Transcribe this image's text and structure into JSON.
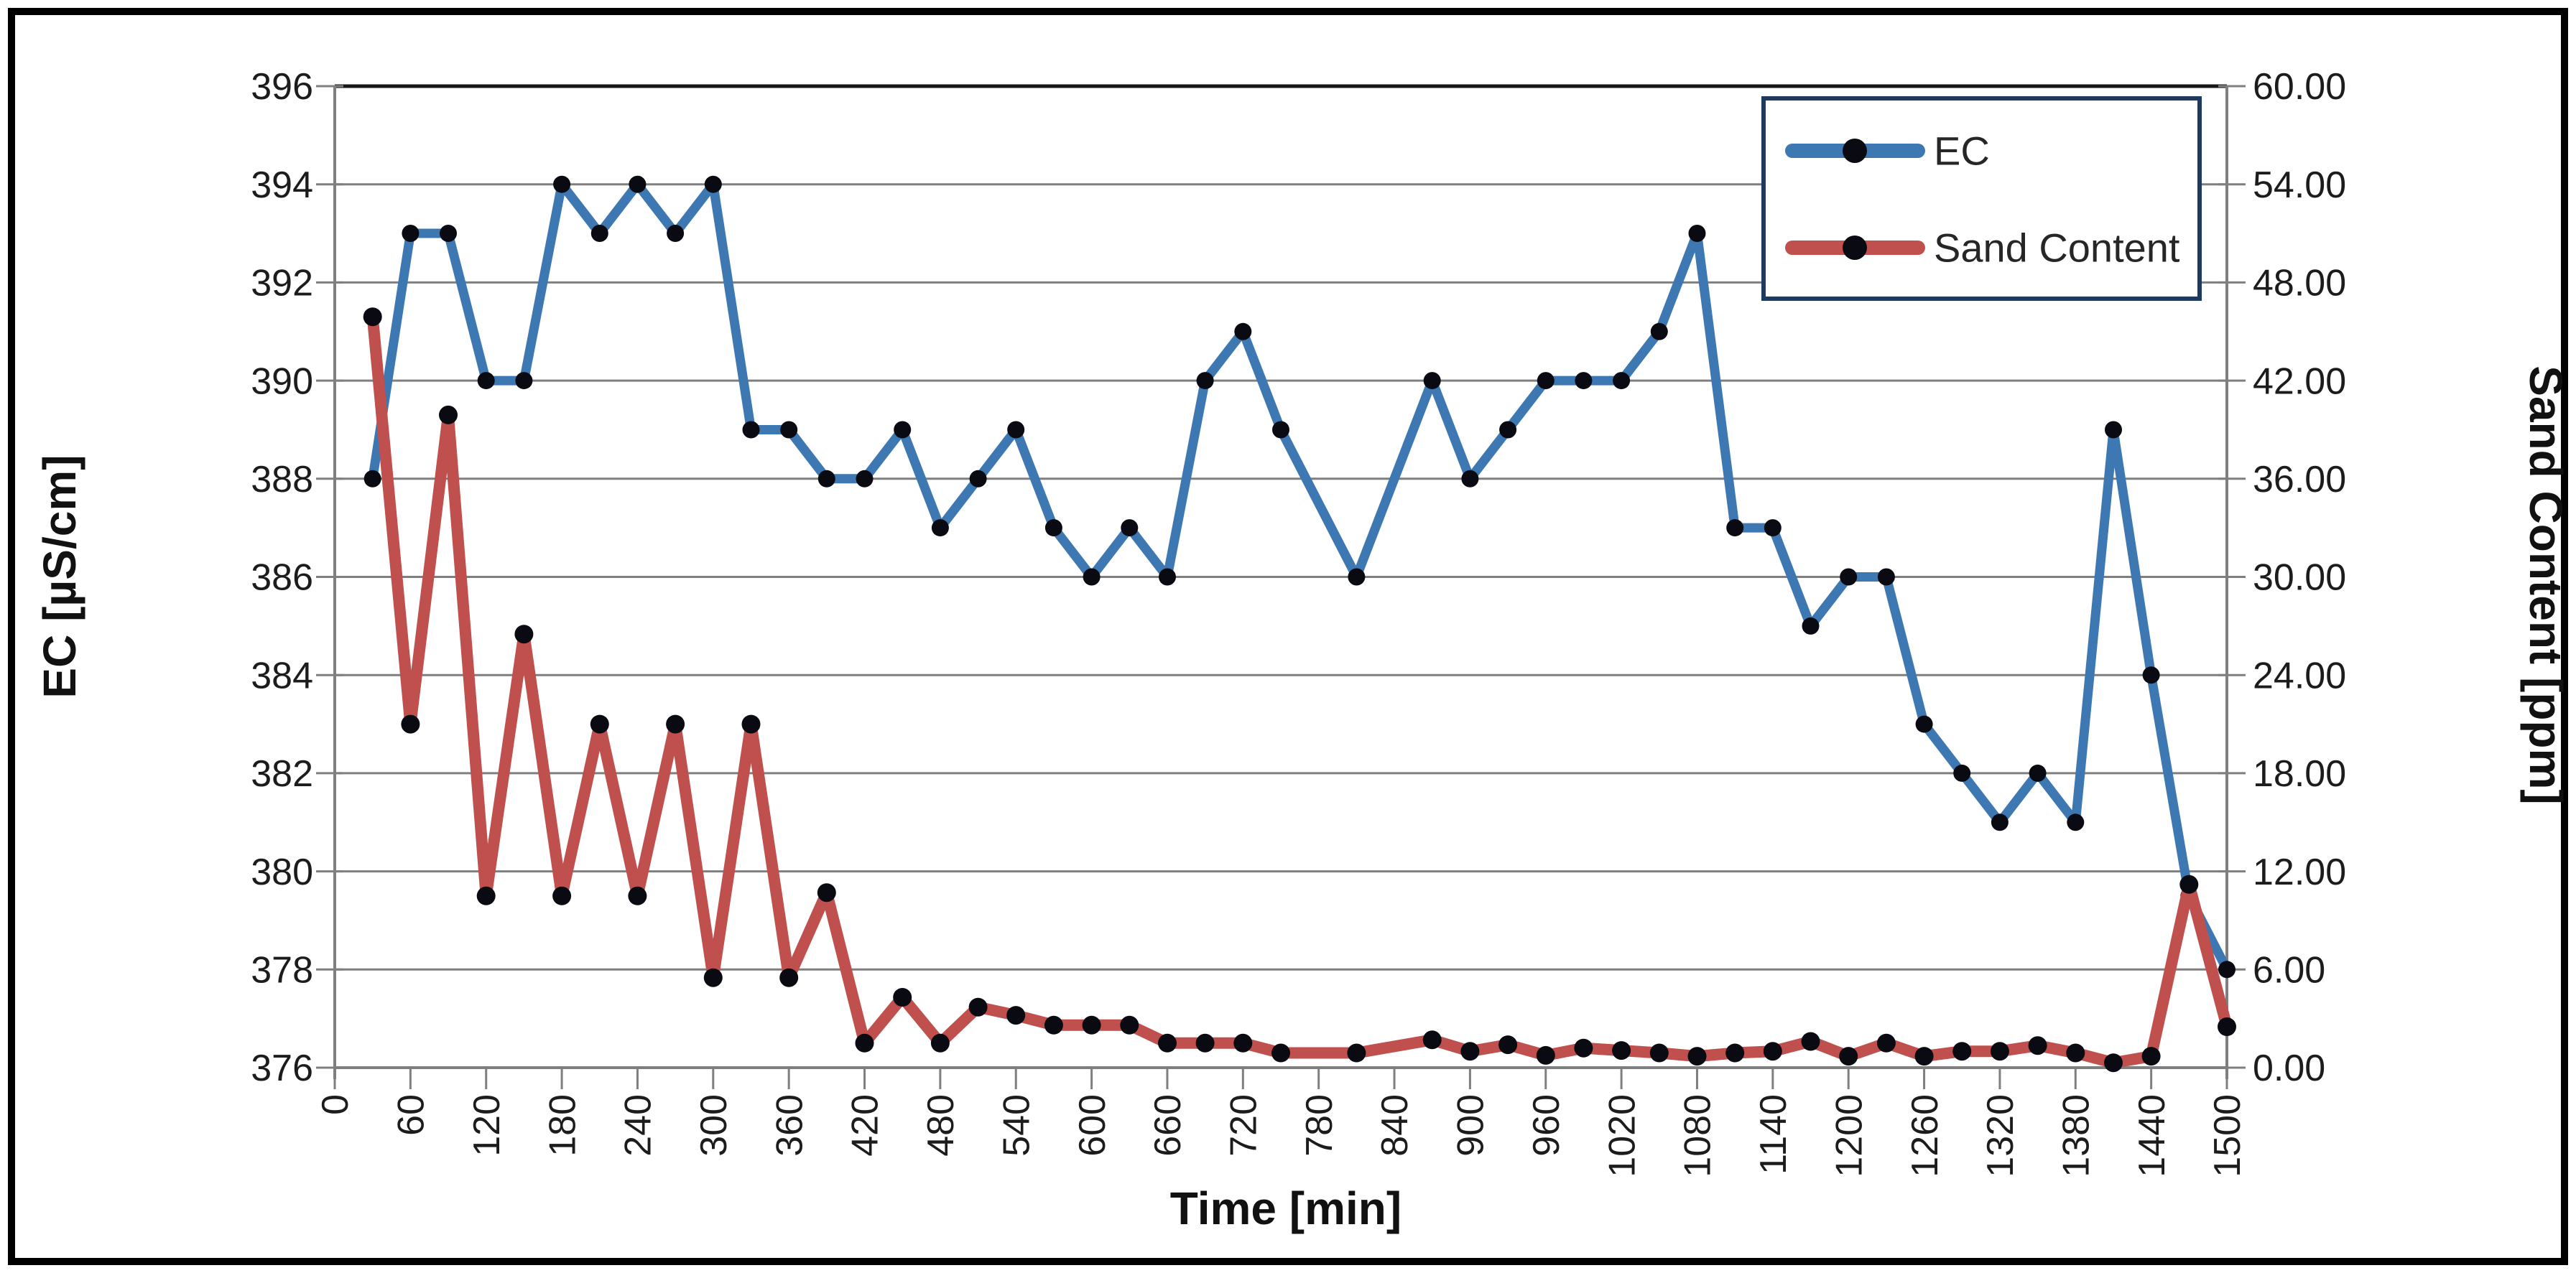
{
  "figure": {
    "background": "#ffffff",
    "border_color": "#000000"
  },
  "chart_data": {
    "type": "line",
    "xlabel": "Time [min]",
    "ylabel_left": "EC [µS/cm]",
    "ylabel_right": "Sand Content [ppm]",
    "x_min": 0,
    "x_max": 1500,
    "x_tick_step": 60,
    "x_tick_labels": [
      "0",
      "60",
      "120",
      "180",
      "240",
      "300",
      "360",
      "420",
      "480",
      "540",
      "600",
      "660",
      "720",
      "780",
      "840",
      "900",
      "960",
      "1020",
      "1080",
      "1140",
      "1200",
      "1260",
      "1320",
      "1380",
      "1440",
      "1500"
    ],
    "y_left": {
      "min": 376,
      "max": 396,
      "tick_step": 2,
      "tick_labels": [
        "376",
        "378",
        "380",
        "382",
        "384",
        "386",
        "388",
        "390",
        "392",
        "394",
        "396"
      ]
    },
    "y_right": {
      "min": 0,
      "max": 60,
      "tick_step": 6,
      "tick_labels": [
        "0.00",
        "6.00",
        "12.00",
        "18.00",
        "24.00",
        "30.00",
        "36.00",
        "42.00",
        "48.00",
        "54.00",
        "60.00"
      ]
    },
    "grid": true,
    "gridline_color": "#7f7f7f",
    "top_border_color": "#161616",
    "marker_color": "#0a0a12",
    "legend": {
      "position": "top-right",
      "border_color": "#1e3a5e",
      "background": "#ffffff"
    },
    "x": [
      30,
      60,
      90,
      120,
      150,
      180,
      210,
      240,
      270,
      300,
      330,
      360,
      390,
      420,
      450,
      480,
      510,
      540,
      570,
      600,
      630,
      660,
      690,
      720,
      750,
      810,
      870,
      900,
      930,
      960,
      990,
      1020,
      1050,
      1080,
      1110,
      1140,
      1170,
      1200,
      1230,
      1260,
      1290,
      1320,
      1350,
      1380,
      1410,
      1440,
      1470,
      1500
    ],
    "series": [
      {
        "name": "EC",
        "axis": "left",
        "color": "#3e78b2",
        "line_width": 13,
        "marker_radius": 12,
        "values": [
          388,
          393,
          393,
          390,
          390,
          394,
          393,
          394,
          393,
          394,
          389,
          389,
          388,
          388,
          389,
          387,
          388,
          389,
          387,
          386,
          387,
          386,
          390,
          391,
          389,
          386,
          390,
          388,
          389,
          390,
          390,
          390,
          391,
          393,
          387,
          387,
          385,
          386,
          386,
          383,
          382,
          381,
          382,
          381,
          389,
          384,
          379.5,
          378
        ]
      },
      {
        "name": "Sand Content",
        "axis": "right",
        "color": "#c0504d",
        "line_width": 16,
        "marker_radius": 13,
        "values": [
          45.9,
          21,
          39.9,
          10.5,
          26.5,
          10.5,
          21,
          10.5,
          21,
          5.5,
          21,
          5.5,
          10.7,
          1.5,
          4.3,
          1.5,
          3.7,
          3.2,
          2.6,
          2.6,
          2.6,
          1.5,
          1.5,
          1.5,
          0.9,
          0.9,
          1.7,
          1.0,
          1.4,
          0.75,
          1.2,
          1.05,
          0.9,
          0.7,
          0.9,
          1.0,
          1.6,
          0.7,
          1.5,
          0.7,
          1.0,
          1.0,
          1.35,
          0.9,
          0.3,
          0.7,
          11.2,
          2.5
        ]
      }
    ]
  }
}
